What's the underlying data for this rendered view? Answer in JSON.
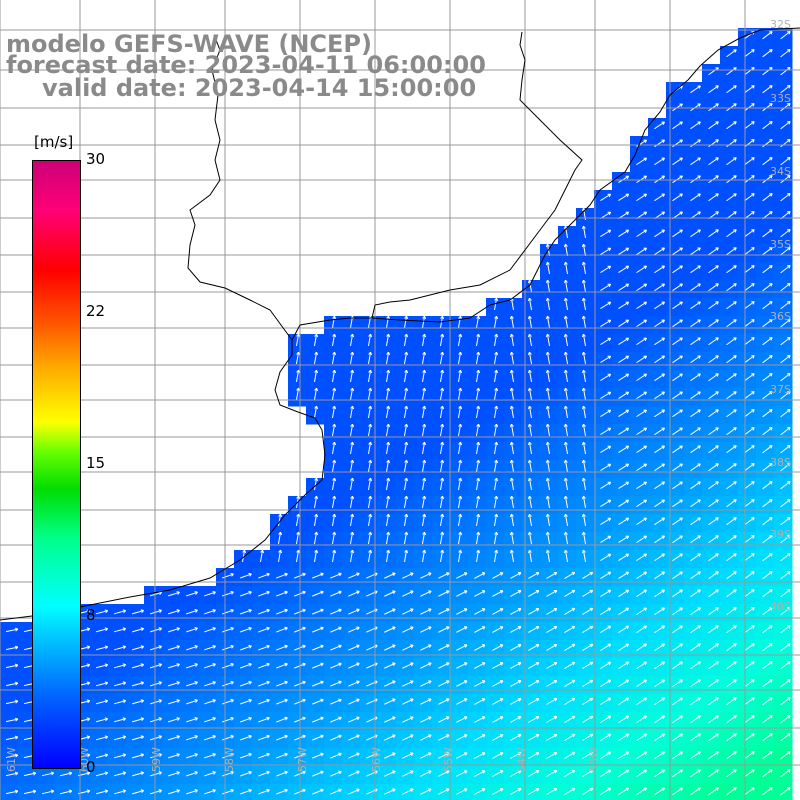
{
  "title": {
    "line1": "modelo GEFS-WAVE (NCEP)",
    "line2": "forecast date: 2023-04-11 06:00:00",
    "line3": "valid date: 2023-04-14 15:00:00"
  },
  "colorbar": {
    "unit": "[m/s]",
    "ticks": [
      "30",
      "22",
      "15",
      "8",
      "0"
    ],
    "colors": [
      "#0000ff",
      "#00ffff",
      "#00dd00",
      "#ffff00",
      "#ff0000",
      "#cc0077"
    ]
  },
  "map": {
    "lat_labels": [
      "32S",
      "33S",
      "34S",
      "35S",
      "36S",
      "37S",
      "38S",
      "39S",
      "40S"
    ],
    "lon_labels": [
      "61W",
      "60W",
      "59W",
      "58W",
      "57W",
      "56W",
      "55W",
      "54W",
      "53W"
    ],
    "land_color": "#ffffff",
    "grid_color": "#999999",
    "coast_color": "#000000",
    "arrow_color": "#ffffff"
  }
}
